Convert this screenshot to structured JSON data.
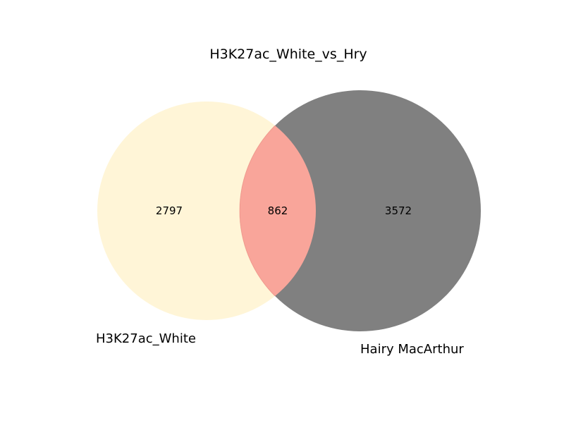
{
  "title": "H3K27ac_White_vs_Hry",
  "sets": [
    {
      "name": "H3K27ac_White",
      "color": "#fff5d7"
    },
    {
      "name": "Hairy MacArthur",
      "color": "#808080"
    }
  ],
  "intersection_color": "#f9a59a",
  "regions": {
    "only_a": "2797",
    "both": "862",
    "only_b": "3572"
  }
}
